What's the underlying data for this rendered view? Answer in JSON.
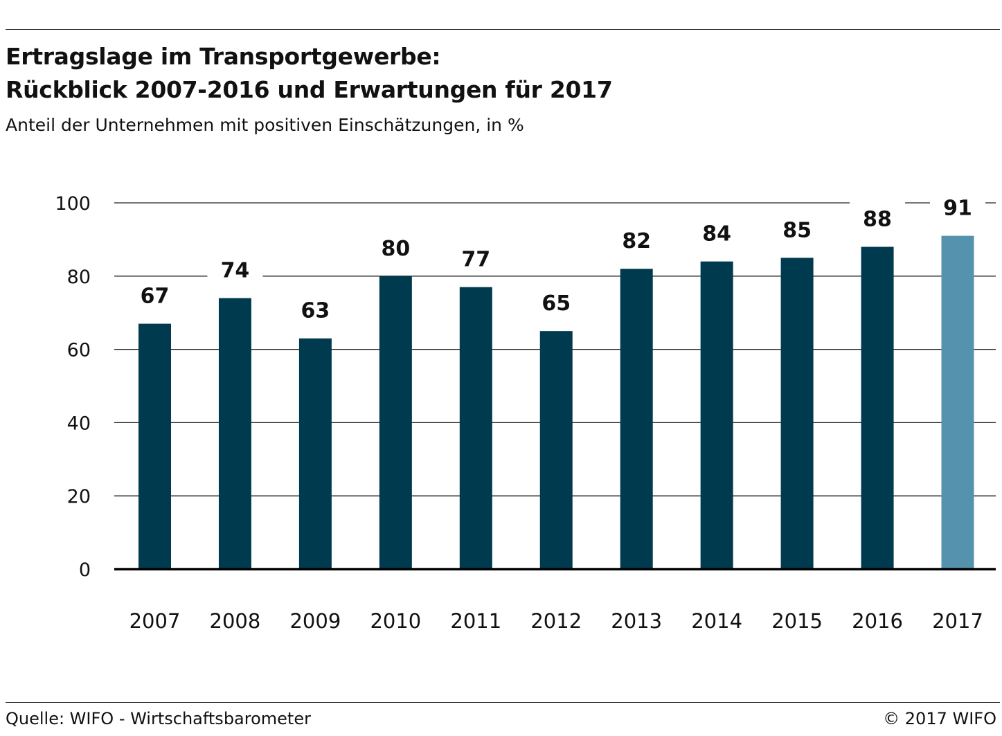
{
  "header": {
    "title_line1": "Ertragslage im Transportgewerbe:",
    "title_line2": "Rückblick 2007-2016 und Erwartungen für 2017",
    "subtitle": "Anteil der Unternehmen mit positiven Einschätzungen, in %"
  },
  "footer": {
    "source": "Quelle: WIFO - Wirtschaftsbarometer",
    "copyright": "© 2017 WIFO"
  },
  "colors": {
    "bar_actual": "#003a4f",
    "bar_expected": "#5592ad",
    "grid": "#222222",
    "axis": "#000000"
  },
  "chart_data": {
    "type": "bar",
    "title": "Ertragslage im Transportgewerbe: Rückblick 2007-2016 und Erwartungen für 2017",
    "subtitle": "Anteil der Unternehmen mit positiven Einschätzungen, in %",
    "xlabel": "",
    "ylabel": "",
    "categories": [
      "2007",
      "2008",
      "2009",
      "2010",
      "2011",
      "2012",
      "2013",
      "2014",
      "2015",
      "2016",
      "2017"
    ],
    "values": [
      67,
      74,
      63,
      80,
      77,
      65,
      82,
      84,
      85,
      88,
      91
    ],
    "ylim": [
      0,
      100
    ],
    "yticks": [
      0,
      20,
      40,
      60,
      80,
      100
    ],
    "grid": true,
    "legend": "none",
    "highlight_category": "2017"
  }
}
